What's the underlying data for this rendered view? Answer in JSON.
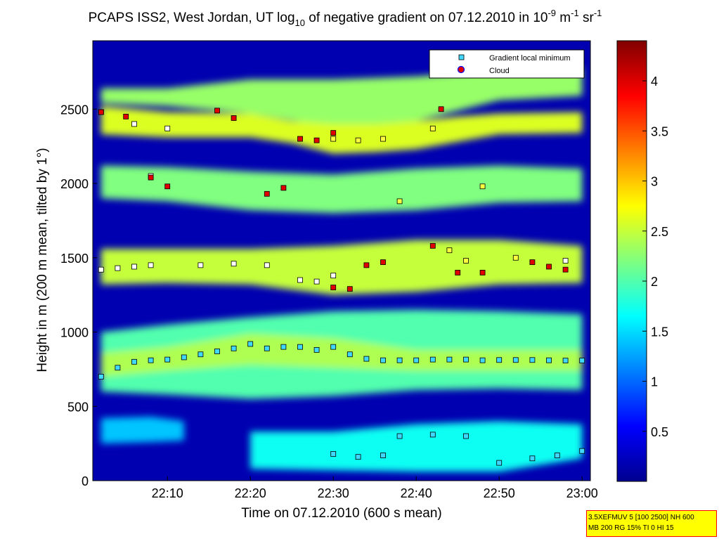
{
  "chart_data": {
    "type": "heatmap",
    "title": {
      "main": "PCAPS ISS2, West Jordan, UT log",
      "main_sub": "10",
      "after": " of negative gradient on 07.12.2010 in 10",
      "exp1": "-9",
      "unit1": " m",
      "exp2": "-1",
      "unit2": " sr",
      "exp3": "-1"
    },
    "xlabel": "Time on 07.12.2010 (600 s mean)",
    "ylabel": "Height in m (200 m mean, tilted by 1°)",
    "xlim": [
      "22:01",
      "23:01"
    ],
    "ylim": [
      0,
      2960
    ],
    "x_tick_labels": [
      "22:10",
      "22:20",
      "22:30",
      "22:40",
      "22:50",
      "23:00"
    ],
    "y_tick_labels": [
      "0",
      "500",
      "1000",
      "1500",
      "2000",
      "2500"
    ],
    "colorbar": {
      "colormap": "jet",
      "range": [
        0,
        4.4
      ],
      "tick_labels": [
        "0.5",
        "1",
        "1.5",
        "2",
        "2.5",
        "3",
        "3.5",
        "4"
      ]
    },
    "legend": {
      "placement": "top-right",
      "entries": [
        "Gradient local minimum",
        "Cloud"
      ]
    },
    "layers": [
      {
        "name": "L1",
        "value": 2.3,
        "base": [
          [
            22.02,
            2540
          ],
          [
            22.1,
            2520
          ],
          [
            22.2,
            2470
          ],
          [
            22.3,
            2380
          ],
          [
            22.4,
            2420
          ],
          [
            22.5,
            2560
          ],
          [
            23.0,
            2590
          ]
        ],
        "top": [
          [
            22.02,
            2640
          ],
          [
            22.1,
            2640
          ],
          [
            22.2,
            2700
          ],
          [
            22.3,
            2700
          ],
          [
            22.4,
            2720
          ],
          [
            22.5,
            2760
          ],
          [
            23.0,
            2780
          ]
        ]
      },
      {
        "name": "L2",
        "value": 2.6,
        "base": [
          [
            22.02,
            2330
          ],
          [
            22.1,
            2310
          ],
          [
            22.2,
            2310
          ],
          [
            22.25,
            2270
          ],
          [
            22.3,
            2200
          ],
          [
            22.35,
            2210
          ],
          [
            22.4,
            2230
          ],
          [
            22.45,
            2280
          ],
          [
            22.5,
            2330
          ],
          [
            23.0,
            2340
          ]
        ],
        "top": [
          [
            22.02,
            2520
          ],
          [
            22.1,
            2480
          ],
          [
            22.2,
            2470
          ],
          [
            22.25,
            2420
          ],
          [
            22.3,
            2400
          ],
          [
            22.35,
            2400
          ],
          [
            22.4,
            2420
          ],
          [
            22.45,
            2450
          ],
          [
            22.5,
            2470
          ],
          [
            23.0,
            2480
          ]
        ]
      },
      {
        "name": "L3",
        "value": 2.2,
        "base": [
          [
            22.02,
            1900
          ],
          [
            22.1,
            1880
          ],
          [
            22.2,
            1820
          ],
          [
            22.3,
            1800
          ],
          [
            22.4,
            1820
          ],
          [
            22.5,
            1870
          ],
          [
            23.0,
            1880
          ]
        ],
        "top": [
          [
            22.02,
            2120
          ],
          [
            22.1,
            2110
          ],
          [
            22.2,
            2080
          ],
          [
            22.3,
            2060
          ],
          [
            22.4,
            2100
          ],
          [
            22.5,
            2120
          ],
          [
            23.0,
            2100
          ]
        ]
      },
      {
        "name": "L4",
        "value": 2.5,
        "base": [
          [
            22.02,
            1320
          ],
          [
            22.1,
            1330
          ],
          [
            22.2,
            1320
          ],
          [
            22.3,
            1250
          ],
          [
            22.4,
            1270
          ],
          [
            22.5,
            1320
          ],
          [
            23.0,
            1330
          ]
        ],
        "top": [
          [
            22.02,
            1560
          ],
          [
            22.1,
            1560
          ],
          [
            22.2,
            1560
          ],
          [
            22.3,
            1580
          ],
          [
            22.4,
            1620
          ],
          [
            22.5,
            1620
          ],
          [
            23.0,
            1580
          ]
        ]
      },
      {
        "name": "L5",
        "value": 2.0,
        "base": [
          [
            22.02,
            600
          ],
          [
            22.1,
            580
          ],
          [
            22.2,
            550
          ],
          [
            22.3,
            570
          ],
          [
            22.4,
            610
          ],
          [
            22.5,
            620
          ],
          [
            23.0,
            610
          ]
        ],
        "top": [
          [
            22.02,
            1000
          ],
          [
            22.1,
            1050
          ],
          [
            22.2,
            1100
          ],
          [
            22.3,
            1140
          ],
          [
            22.4,
            1150
          ],
          [
            22.5,
            1140
          ],
          [
            23.0,
            1120
          ]
        ]
      },
      {
        "name": "L6",
        "value": 2.4,
        "base": [
          [
            22.02,
            700
          ],
          [
            22.1,
            740
          ],
          [
            22.2,
            780
          ],
          [
            22.3,
            760
          ],
          [
            22.4,
            740
          ],
          [
            22.5,
            740
          ],
          [
            23.0,
            740
          ]
        ],
        "top": [
          [
            22.02,
            860
          ],
          [
            22.1,
            900
          ],
          [
            22.2,
            990
          ],
          [
            22.3,
            960
          ],
          [
            22.4,
            880
          ],
          [
            22.5,
            880
          ],
          [
            23.0,
            880
          ]
        ]
      },
      {
        "name": "L7",
        "value": 1.4,
        "base": [
          [
            22.02,
            250
          ],
          [
            22.08,
            260
          ],
          [
            22.12,
            270
          ]
        ],
        "top": [
          [
            22.02,
            420
          ],
          [
            22.08,
            430
          ],
          [
            22.12,
            400
          ]
        ]
      },
      {
        "name": "L8",
        "value": 1.7,
        "base": [
          [
            22.2,
            80
          ],
          [
            22.3,
            70
          ],
          [
            22.4,
            60
          ],
          [
            22.5,
            60
          ],
          [
            23.0,
            150
          ]
        ],
        "top": [
          [
            22.2,
            330
          ],
          [
            22.3,
            330
          ],
          [
            22.4,
            380
          ],
          [
            22.5,
            400
          ],
          [
            23.0,
            380
          ]
        ]
      }
    ],
    "series": [
      {
        "name": "Gradient local minimum",
        "marker": "square",
        "points_cyan": [
          [
            22.02,
            700
          ],
          [
            22.04,
            760
          ],
          [
            22.06,
            800
          ],
          [
            22.08,
            810
          ],
          [
            22.1,
            815
          ],
          [
            22.12,
            830
          ],
          [
            22.14,
            850
          ],
          [
            22.16,
            870
          ],
          [
            22.18,
            890
          ],
          [
            22.2,
            920
          ],
          [
            22.22,
            890
          ],
          [
            22.24,
            900
          ],
          [
            22.26,
            900
          ],
          [
            22.28,
            880
          ],
          [
            22.3,
            900
          ],
          [
            22.32,
            850
          ],
          [
            22.34,
            820
          ],
          [
            22.36,
            810
          ],
          [
            22.38,
            810
          ],
          [
            22.4,
            810
          ],
          [
            22.42,
            815
          ],
          [
            22.44,
            815
          ],
          [
            22.46,
            815
          ],
          [
            22.48,
            810
          ],
          [
            22.5,
            812
          ],
          [
            22.52,
            812
          ],
          [
            22.54,
            812
          ],
          [
            22.56,
            810
          ],
          [
            22.58,
            808
          ],
          [
            22.6,
            808
          ],
          [
            22.3,
            180
          ],
          [
            22.33,
            160
          ],
          [
            22.36,
            170
          ],
          [
            22.38,
            300
          ],
          [
            22.42,
            310
          ],
          [
            22.46,
            300
          ],
          [
            22.5,
            120
          ],
          [
            22.54,
            150
          ],
          [
            22.57,
            170
          ],
          [
            22.6,
            200
          ]
        ],
        "points_white": [
          [
            22.02,
            1420
          ],
          [
            22.04,
            1430
          ],
          [
            22.06,
            1440
          ],
          [
            22.08,
            1450
          ],
          [
            22.14,
            1450
          ],
          [
            22.18,
            1460
          ],
          [
            22.22,
            1450
          ],
          [
            22.26,
            1350
          ],
          [
            22.28,
            1340
          ],
          [
            22.3,
            1380
          ],
          [
            22.08,
            2050
          ],
          [
            22.06,
            2400
          ],
          [
            22.1,
            2370
          ],
          [
            22.02,
            2480
          ],
          [
            22.58,
            1480
          ]
        ],
        "points_yellow": [
          [
            22.3,
            2300
          ],
          [
            22.33,
            2290
          ],
          [
            22.36,
            2300
          ],
          [
            22.38,
            1880
          ],
          [
            22.42,
            2370
          ],
          [
            22.44,
            1550
          ],
          [
            22.46,
            1480
          ],
          [
            22.48,
            1980
          ],
          [
            22.52,
            1500
          ]
        ]
      },
      {
        "name": "Cloud",
        "marker": "square-red",
        "points": [
          [
            22.02,
            2480
          ],
          [
            22.05,
            2450
          ],
          [
            22.16,
            2490
          ],
          [
            22.18,
            2440
          ],
          [
            22.22,
            1930
          ],
          [
            22.24,
            1970
          ],
          [
            22.26,
            2300
          ],
          [
            22.28,
            2290
          ],
          [
            22.3,
            2340
          ],
          [
            22.08,
            2040
          ],
          [
            22.1,
            1980
          ],
          [
            22.34,
            1450
          ],
          [
            22.36,
            1470
          ],
          [
            22.3,
            1300
          ],
          [
            22.32,
            1290
          ],
          [
            22.42,
            1580
          ],
          [
            22.43,
            2500
          ],
          [
            22.45,
            1400
          ],
          [
            22.48,
            1400
          ],
          [
            22.54,
            1470
          ],
          [
            22.56,
            1440
          ],
          [
            22.58,
            1420
          ]
        ]
      }
    ]
  },
  "note": {
    "line1": "3.5XEFMUV 5 [100 2500] NH 600",
    "line2": "MB 200 RG 15% TI 0 HI 15"
  }
}
